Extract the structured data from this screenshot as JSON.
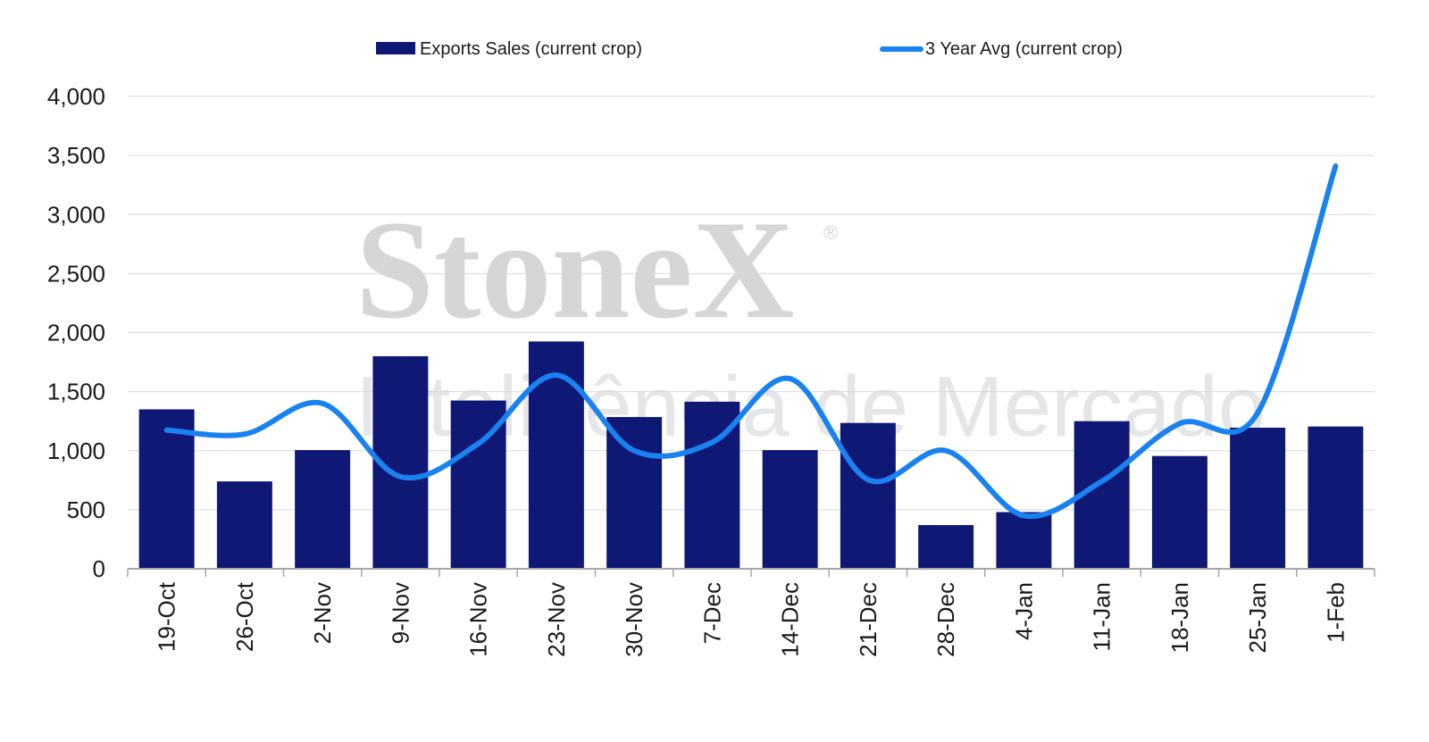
{
  "watermark": {
    "brand": "StoneX",
    "registered": "®",
    "tagline": "Inteligência de Mercado"
  },
  "colors": {
    "bars": "#0f1874",
    "line": "#1a82f0",
    "grid": "#d9d9d9",
    "axis": "#a6a6a6"
  },
  "chart_data": {
    "type": "bar",
    "categories": [
      "19-Oct",
      "26-Oct",
      "2-Nov",
      "9-Nov",
      "16-Nov",
      "23-Nov",
      "30-Nov",
      "7-Dec",
      "14-Dec",
      "21-Dec",
      "28-Dec",
      "4-Jan",
      "11-Jan",
      "18-Jan",
      "25-Jan",
      "1-Feb"
    ],
    "series": [
      {
        "name": "Exports Sales (current crop)",
        "type": "bar",
        "values": [
          1350,
          740,
          1005,
          1800,
          1425,
          1925,
          1285,
          1415,
          1005,
          1235,
          370,
          480,
          1250,
          955,
          1195,
          1205
        ]
      },
      {
        "name": "3 Year Avg (current crop)",
        "type": "line",
        "values": [
          1175,
          1140,
          1400,
          780,
          1060,
          1640,
          1000,
          1070,
          1610,
          755,
          1000,
          450,
          740,
          1230,
          1320,
          3410
        ]
      }
    ],
    "ylim": [
      0,
      4000
    ],
    "yticks": [
      0,
      500,
      1000,
      1500,
      2000,
      2500,
      3000,
      3500,
      4000
    ],
    "ytick_labels": [
      "0",
      "500",
      "1,000",
      "1,500",
      "2,000",
      "2,500",
      "3,000",
      "3,500",
      "4,000"
    ],
    "grid": true,
    "legend_position": "top"
  }
}
